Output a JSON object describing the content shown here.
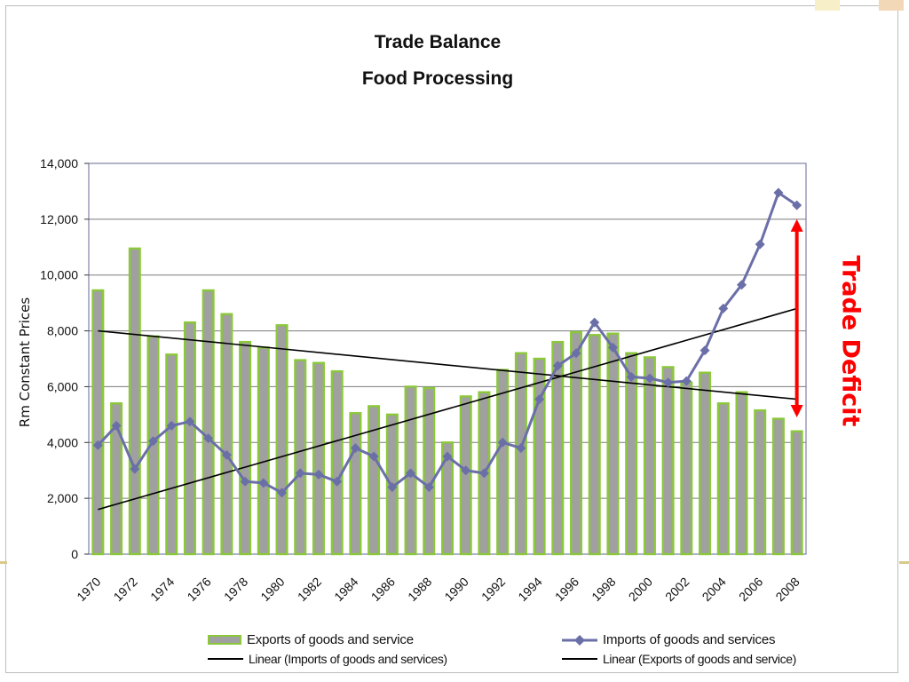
{
  "chart_data": {
    "type": "bar",
    "title": "Trade Balance",
    "subtitle": "Food Processing",
    "ylabel": "Rm Constant Prices",
    "xlabel": "",
    "ylim": [
      0,
      14000
    ],
    "yticks": [
      0,
      2000,
      4000,
      6000,
      8000,
      10000,
      12000,
      14000
    ],
    "ytick_labels": [
      "0",
      "2,000",
      "4,000",
      "6,000",
      "8,000",
      "10,000",
      "12,000",
      "14,000"
    ],
    "xtick_labels": [
      "1970",
      "1972",
      "1974",
      "1976",
      "1978",
      "1980",
      "1982",
      "1984",
      "1986",
      "1988",
      "1990",
      "1992",
      "1994",
      "1996",
      "1998",
      "2000",
      "2002",
      "2004",
      "2006",
      "2008"
    ],
    "categories": [
      1970,
      1971,
      1972,
      1973,
      1974,
      1975,
      1976,
      1977,
      1978,
      1979,
      1980,
      1981,
      1982,
      1983,
      1984,
      1985,
      1986,
      1987,
      1988,
      1989,
      1990,
      1991,
      1992,
      1993,
      1994,
      1995,
      1996,
      1997,
      1998,
      1999,
      2000,
      2001,
      2002,
      2003,
      2004,
      2005,
      2006,
      2007,
      2008
    ],
    "grid": true,
    "legend_position": "bottom",
    "series": [
      {
        "name": "Exports of goods and service",
        "kind": "bar",
        "color": "#a0a0a0",
        "edge_color": "#8bc83a",
        "values": [
          9450,
          5400,
          10950,
          7800,
          7150,
          8300,
          9450,
          8600,
          7600,
          7400,
          8200,
          6950,
          6850,
          6550,
          5050,
          5300,
          5000,
          6000,
          5950,
          4000,
          5650,
          5800,
          6600,
          7200,
          7000,
          7600,
          7950,
          7850,
          7900,
          7200,
          7050,
          6700,
          6150,
          6500,
          5400,
          5800,
          5150,
          4850,
          4400
        ]
      },
      {
        "name": "Imports of goods and services",
        "kind": "line",
        "color": "#6b6fa8",
        "marker": "diamond",
        "values": [
          3900,
          4600,
          3050,
          4050,
          4600,
          4750,
          4150,
          3550,
          2600,
          2550,
          2200,
          2900,
          2850,
          2600,
          3800,
          3500,
          2400,
          2900,
          2400,
          3500,
          3000,
          2900,
          4000,
          3800,
          5550,
          6750,
          7200,
          8300,
          7400,
          6350,
          6300,
          6150,
          6200,
          7300,
          8800,
          9650,
          11100,
          12950,
          12500
        ]
      },
      {
        "name": "Linear (Imports of goods and services)",
        "kind": "trend",
        "color": "#000000",
        "start": [
          1970,
          1600
        ],
        "end": [
          2008,
          8800
        ]
      },
      {
        "name": "Linear (Exports of  goods and service)",
        "kind": "trend",
        "color": "#000000",
        "start": [
          1970,
          8000
        ],
        "end": [
          2008,
          5550
        ]
      }
    ],
    "annotations": [
      {
        "text": "Trade Deficit",
        "color": "#ff0000",
        "kind": "double-arrow",
        "year": 2008,
        "from": 4900,
        "to": 12000
      }
    ]
  }
}
